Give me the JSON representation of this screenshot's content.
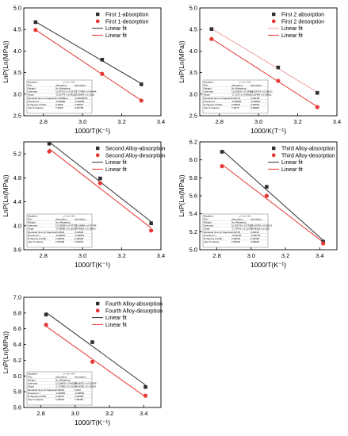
{
  "chart_data": [
    {
      "type": "scatter",
      "panel": "first",
      "xlabel": "1000/T(K⁻¹)",
      "ylabel": "LnP(Ln(MPa))",
      "xlim": [
        2.7,
        3.4
      ],
      "ylim": [
        2.5,
        5.0
      ],
      "xticks": [
        "2.8",
        "3.0",
        "3.2",
        "3.4"
      ],
      "yticks": [
        "2.5",
        "3.0",
        "3.5",
        "4.0",
        "4.5",
        "5.0"
      ],
      "legend_position": "top-right",
      "series": [
        {
          "name": "First 1-absorption",
          "color": "#303030",
          "marker": "square",
          "x": [
            2.76,
            3.1,
            3.3
          ],
          "y": [
            4.67,
            3.8,
            3.23
          ]
        },
        {
          "name": "First 1-desorption",
          "color": "#e53935",
          "marker": "circle",
          "x": [
            2.76,
            3.1,
            3.3
          ],
          "y": [
            4.49,
            3.47,
            2.85
          ]
        }
      ],
      "fits": [
        {
          "name": "Linear fit",
          "color": "#303030"
        },
        {
          "name": "Linear fit",
          "color": "#e53935"
        }
      ],
      "table": {
        "formula": "y = a + b*x",
        "head": [
          "Plot",
          "absorption",
          "desorption"
        ],
        "rows": [
          [
            "Weight",
            "No Weighting",
            ""
          ],
          [
            "Intercept",
            "11.87313 ± 0.16717",
            "12.77486 ± 0.45484"
          ],
          [
            "Slope",
            "-2.61474 ± 0.05127",
            "-3.00048 ± 0.1516"
          ],
          [
            "Residual Sum of Squares",
            "5.70396E-4",
            "0.00555878"
          ],
          [
            "Pearson's r",
            "-0.99995",
            "-0.99948"
          ],
          [
            "R-Square (COD)",
            "0.9999",
            "0.99897"
          ],
          [
            "Adj. R-Square",
            "0.9998",
            "0.99795"
          ]
        ]
      }
    },
    {
      "type": "scatter",
      "panel": "second",
      "xlabel": "1000/K(T⁻¹)",
      "ylabel": "LnP(Ln(MPa))",
      "xlim": [
        2.7,
        3.4
      ],
      "ylim": [
        2.5,
        5.0
      ],
      "xticks": [
        "2.8",
        "3.0",
        "3.2",
        "3.4"
      ],
      "yticks": [
        "2.5",
        "3.0",
        "3.5",
        "4.0",
        "4.5",
        "5.0"
      ],
      "legend_position": "top-right",
      "series": [
        {
          "name": "First 2 absorption",
          "color": "#303030",
          "marker": "square",
          "x": [
            2.76,
            3.1,
            3.3
          ],
          "y": [
            4.51,
            3.62,
            3.03
          ]
        },
        {
          "name": "First 2 desorption",
          "color": "#e53935",
          "marker": "circle",
          "x": [
            2.76,
            3.1,
            3.3
          ],
          "y": [
            4.28,
            3.31,
            2.7
          ]
        }
      ],
      "fits": [
        {
          "name": "Linear fit",
          "color": "#f4a3a3"
        },
        {
          "name": "Linear fit",
          "color": "#e53935"
        }
      ],
      "table": {
        "formula": "y = a + b*x",
        "head": [
          "Plot",
          "absorption",
          "desorption"
        ],
        "rows": [
          [
            "Weight",
            "No Weighting",
            ""
          ],
          [
            "Intercept",
            "12.09519 ± 0.29469",
            "12.34374 ± 0.26013"
          ],
          [
            "Slope",
            "-2.7175 ± 0.09582",
            "-3.02484 ± 0.08411"
          ],
          [
            "Residual Sum of Squares",
            "0.00175",
            "0.00138"
          ],
          [
            "Pearson's r",
            "-0.99938",
            "-0.99961"
          ],
          [
            "R-Square (COD)",
            "0.99875",
            "0.99923"
          ],
          [
            "Adj. R-Square",
            "0.9975",
            "0.99845"
          ]
        ]
      }
    },
    {
      "type": "scatter",
      "panel": "third",
      "xlabel": "1000/T(K⁻¹)",
      "ylabel": "LnP(Ln(MPa))",
      "xlim": [
        2.7,
        3.4
      ],
      "ylim": [
        3.6,
        5.4
      ],
      "xticks": [
        "2.8",
        "3.0",
        "3.2",
        "3.4"
      ],
      "yticks": [
        "3.6",
        "4.0",
        "4.4",
        "4.8",
        "5.2"
      ],
      "legend_position": "top-right",
      "series": [
        {
          "name": "Second Alloy-absorption",
          "color": "#303030",
          "marker": "square",
          "x": [
            2.83,
            3.09,
            3.35
          ],
          "y": [
            5.37,
            4.79,
            4.04
          ]
        },
        {
          "name": "Second Alloy-desorption",
          "color": "#e53935",
          "marker": "circle",
          "x": [
            2.83,
            3.09,
            3.35
          ],
          "y": [
            5.24,
            4.71,
            3.92
          ]
        }
      ],
      "fits": [
        {
          "name": "Linear fit",
          "color": "#303030"
        },
        {
          "name": "Linear fit",
          "color": "#e53935"
        }
      ],
      "table": {
        "formula": "y = a + b*x",
        "head": [
          "Plot",
          "absorption",
          "desorption"
        ],
        "rows": [
          [
            "Weight",
            "No Weighting",
            ""
          ],
          [
            "Intercept",
            "12.28358 ± 0.47779",
            "12.14468 ± 0.47784"
          ],
          [
            "Slope",
            "-2.40885 ± 0.15278",
            "-2.44563 ± 0.15431"
          ],
          [
            "Residual Sum of Squares",
            "0.01524",
            "0.01609"
          ],
          [
            "Pearson's r",
            "-0.99801",
            "-0.99804"
          ],
          [
            "R-Square (COD)",
            "0.99604",
            "0.99608"
          ],
          [
            "Adj. R-Square",
            "0.99208",
            "0.99215"
          ]
        ]
      }
    },
    {
      "type": "scatter",
      "panel": "fourth",
      "xlabel": "1000/T(K⁻¹)",
      "ylabel": "LnP(Ln(MPa))",
      "xlim": [
        2.7,
        3.5
      ],
      "ylim": [
        5.0,
        6.2
      ],
      "xticks": [
        "2.8",
        "3.0",
        "3.2",
        "3.4"
      ],
      "yticks": [
        "5.0",
        "5.2",
        "5.4",
        "5.6",
        "5.8",
        "6.0",
        "6.2"
      ],
      "legend_position": "top-right",
      "series": [
        {
          "name": "Third Alloy-absorption",
          "color": "#303030",
          "marker": "square",
          "x": [
            2.83,
            3.09,
            3.42
          ],
          "y": [
            6.09,
            5.7,
            5.09
          ]
        },
        {
          "name": "Third Alloy-desorption",
          "color": "#e53935",
          "marker": "circle",
          "x": [
            2.83,
            3.09,
            3.42
          ],
          "y": [
            5.93,
            5.6,
            5.07
          ]
        }
      ],
      "fits": [
        {
          "name": "Linear fit",
          "color": "#303030"
        },
        {
          "name": "Linear fit",
          "color": "#e53935"
        }
      ],
      "table": {
        "formula": "y = a + b*x",
        "head": [
          "Plot",
          "absorption",
          "desorption"
        ],
        "rows": [
          [
            "Weight",
            "No Weighting",
            ""
          ],
          [
            "Intercept",
            "11.00276 ± 0.27857",
            "10.10745 ± 0.09371"
          ],
          [
            "Slope",
            "-1.71475 ± 0.13728",
            "-1.48325 ± 0.1107"
          ],
          [
            "Residual Sum of Squares",
            "0.00745",
            "0.00113"
          ],
          [
            "Pearson's r",
            "-0.99705",
            "-0.99723"
          ],
          [
            "R-Square (COD)",
            "0.99019",
            "0.99446"
          ],
          [
            "Adj. R-Square",
            "0.98039",
            "0.98892"
          ]
        ]
      }
    },
    {
      "type": "scatter",
      "panel": "fifth",
      "xlabel": "1000/T(K⁻¹)",
      "ylabel": "LnP(Ln(MPa))",
      "xlim": [
        2.7,
        3.5
      ],
      "ylim": [
        5.6,
        7.0
      ],
      "xticks": [
        "2.8",
        "3.0",
        "3.2",
        "3.4"
      ],
      "yticks": [
        "5.6",
        "5.8",
        "6.0",
        "6.2",
        "6.4",
        "6.6",
        "6.8",
        "7.0"
      ],
      "legend_position": "top-right",
      "series": [
        {
          "name": "Fourth Alloy-absorption",
          "color": "#303030",
          "marker": "square",
          "x": [
            2.83,
            3.1,
            3.41
          ],
          "y": [
            6.78,
            6.43,
            5.86
          ]
        },
        {
          "name": "Fourth Alloy-desorption",
          "color": "#e53935",
          "marker": "circle",
          "x": [
            2.83,
            3.1,
            3.41
          ],
          "y": [
            6.65,
            6.18,
            5.75
          ]
        }
      ],
      "fits": [
        {
          "name": "Linear fit",
          "color": "#303030"
        },
        {
          "name": "Linear fit",
          "color": "#e53935"
        }
      ],
      "table": {
        "formula": "y = a + b*x",
        "head": [
          "Plot",
          "absorption",
          "desorption"
        ],
        "rows": [
          [
            "Weight",
            "No Weighting",
            ""
          ],
          [
            "Intercept",
            "11.25665 ± 0.40006",
            "10.96971 ± 0.43305"
          ],
          [
            "Slope",
            "-1.57586 ± 0.13124",
            "-1.53382 ± 0.15328"
          ],
          [
            "Residual Sum of Squares",
            "0.00291",
            "0.003"
          ],
          [
            "Pearson's r",
            "-0.99655",
            "-0.99654"
          ],
          [
            "R-Square (COD)",
            "0.99311",
            "0.99308"
          ],
          [
            "Adj. R-Square",
            "0.98624",
            "0.98466"
          ]
        ]
      }
    }
  ]
}
